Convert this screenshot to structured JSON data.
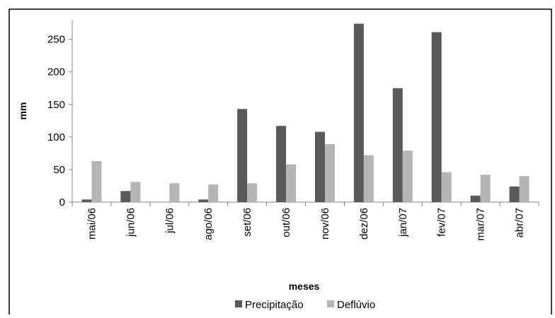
{
  "chart_data": {
    "type": "bar",
    "categories": [
      "mai/06",
      "jun/06",
      "jul/06",
      "ago/06",
      "set/06",
      "out/06",
      "nov/06",
      "dez/06",
      "jan/07",
      "fev/07",
      "mar/07",
      "abr/07"
    ],
    "series": [
      {
        "name": "Precipitação",
        "color": "#595959",
        "values": [
          4,
          17,
          0,
          4,
          143,
          117,
          108,
          274,
          175,
          261,
          10,
          24
        ]
      },
      {
        "name": "Deflúvio",
        "color": "#b5b5b5",
        "values": [
          63,
          31,
          29,
          27,
          29,
          58,
          89,
          72,
          79,
          46,
          42,
          40
        ]
      }
    ],
    "xlabel": "meses",
    "ylabel": "mm",
    "ylim": [
      0,
      280
    ],
    "yticks": [
      0,
      50,
      100,
      150,
      200,
      250
    ],
    "legend_position": "bottom"
  }
}
